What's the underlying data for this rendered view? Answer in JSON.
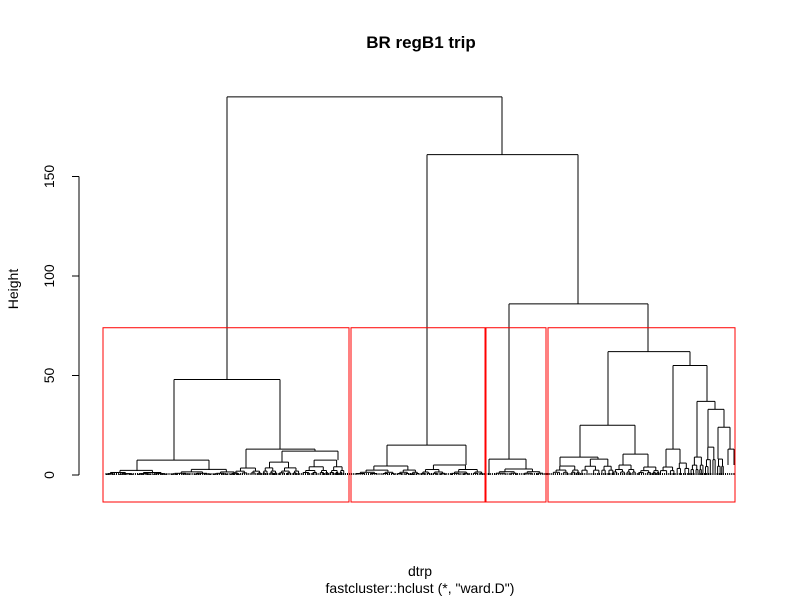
{
  "chart_data": {
    "type": "dendrogram",
    "title": "BR regB1  trip",
    "xlabel": "dtrp",
    "sub": "fastcluster::hclust (*, \"ward.D\")",
    "ylabel": "Height",
    "ylim": [
      0,
      190
    ],
    "yticks": [
      0,
      50,
      100,
      150
    ],
    "n_clusters": 4,
    "cut_height": 74,
    "cluster_color": "#ff0000",
    "merges": [
      {
        "name": "root",
        "height": 190,
        "children": [
          "left-cluster",
          "right-group"
        ]
      },
      {
        "name": "right-group",
        "height": 161,
        "children": [
          "cluster-2",
          "right-sub"
        ]
      },
      {
        "name": "right-sub",
        "height": 86,
        "children": [
          "cluster-3",
          "cluster-4"
        ]
      },
      {
        "name": "left-cluster",
        "height": 48
      },
      {
        "name": "cluster-2",
        "height": 15
      },
      {
        "name": "cluster-3",
        "height": 8
      },
      {
        "name": "cluster-4",
        "height": 62
      }
    ]
  }
}
